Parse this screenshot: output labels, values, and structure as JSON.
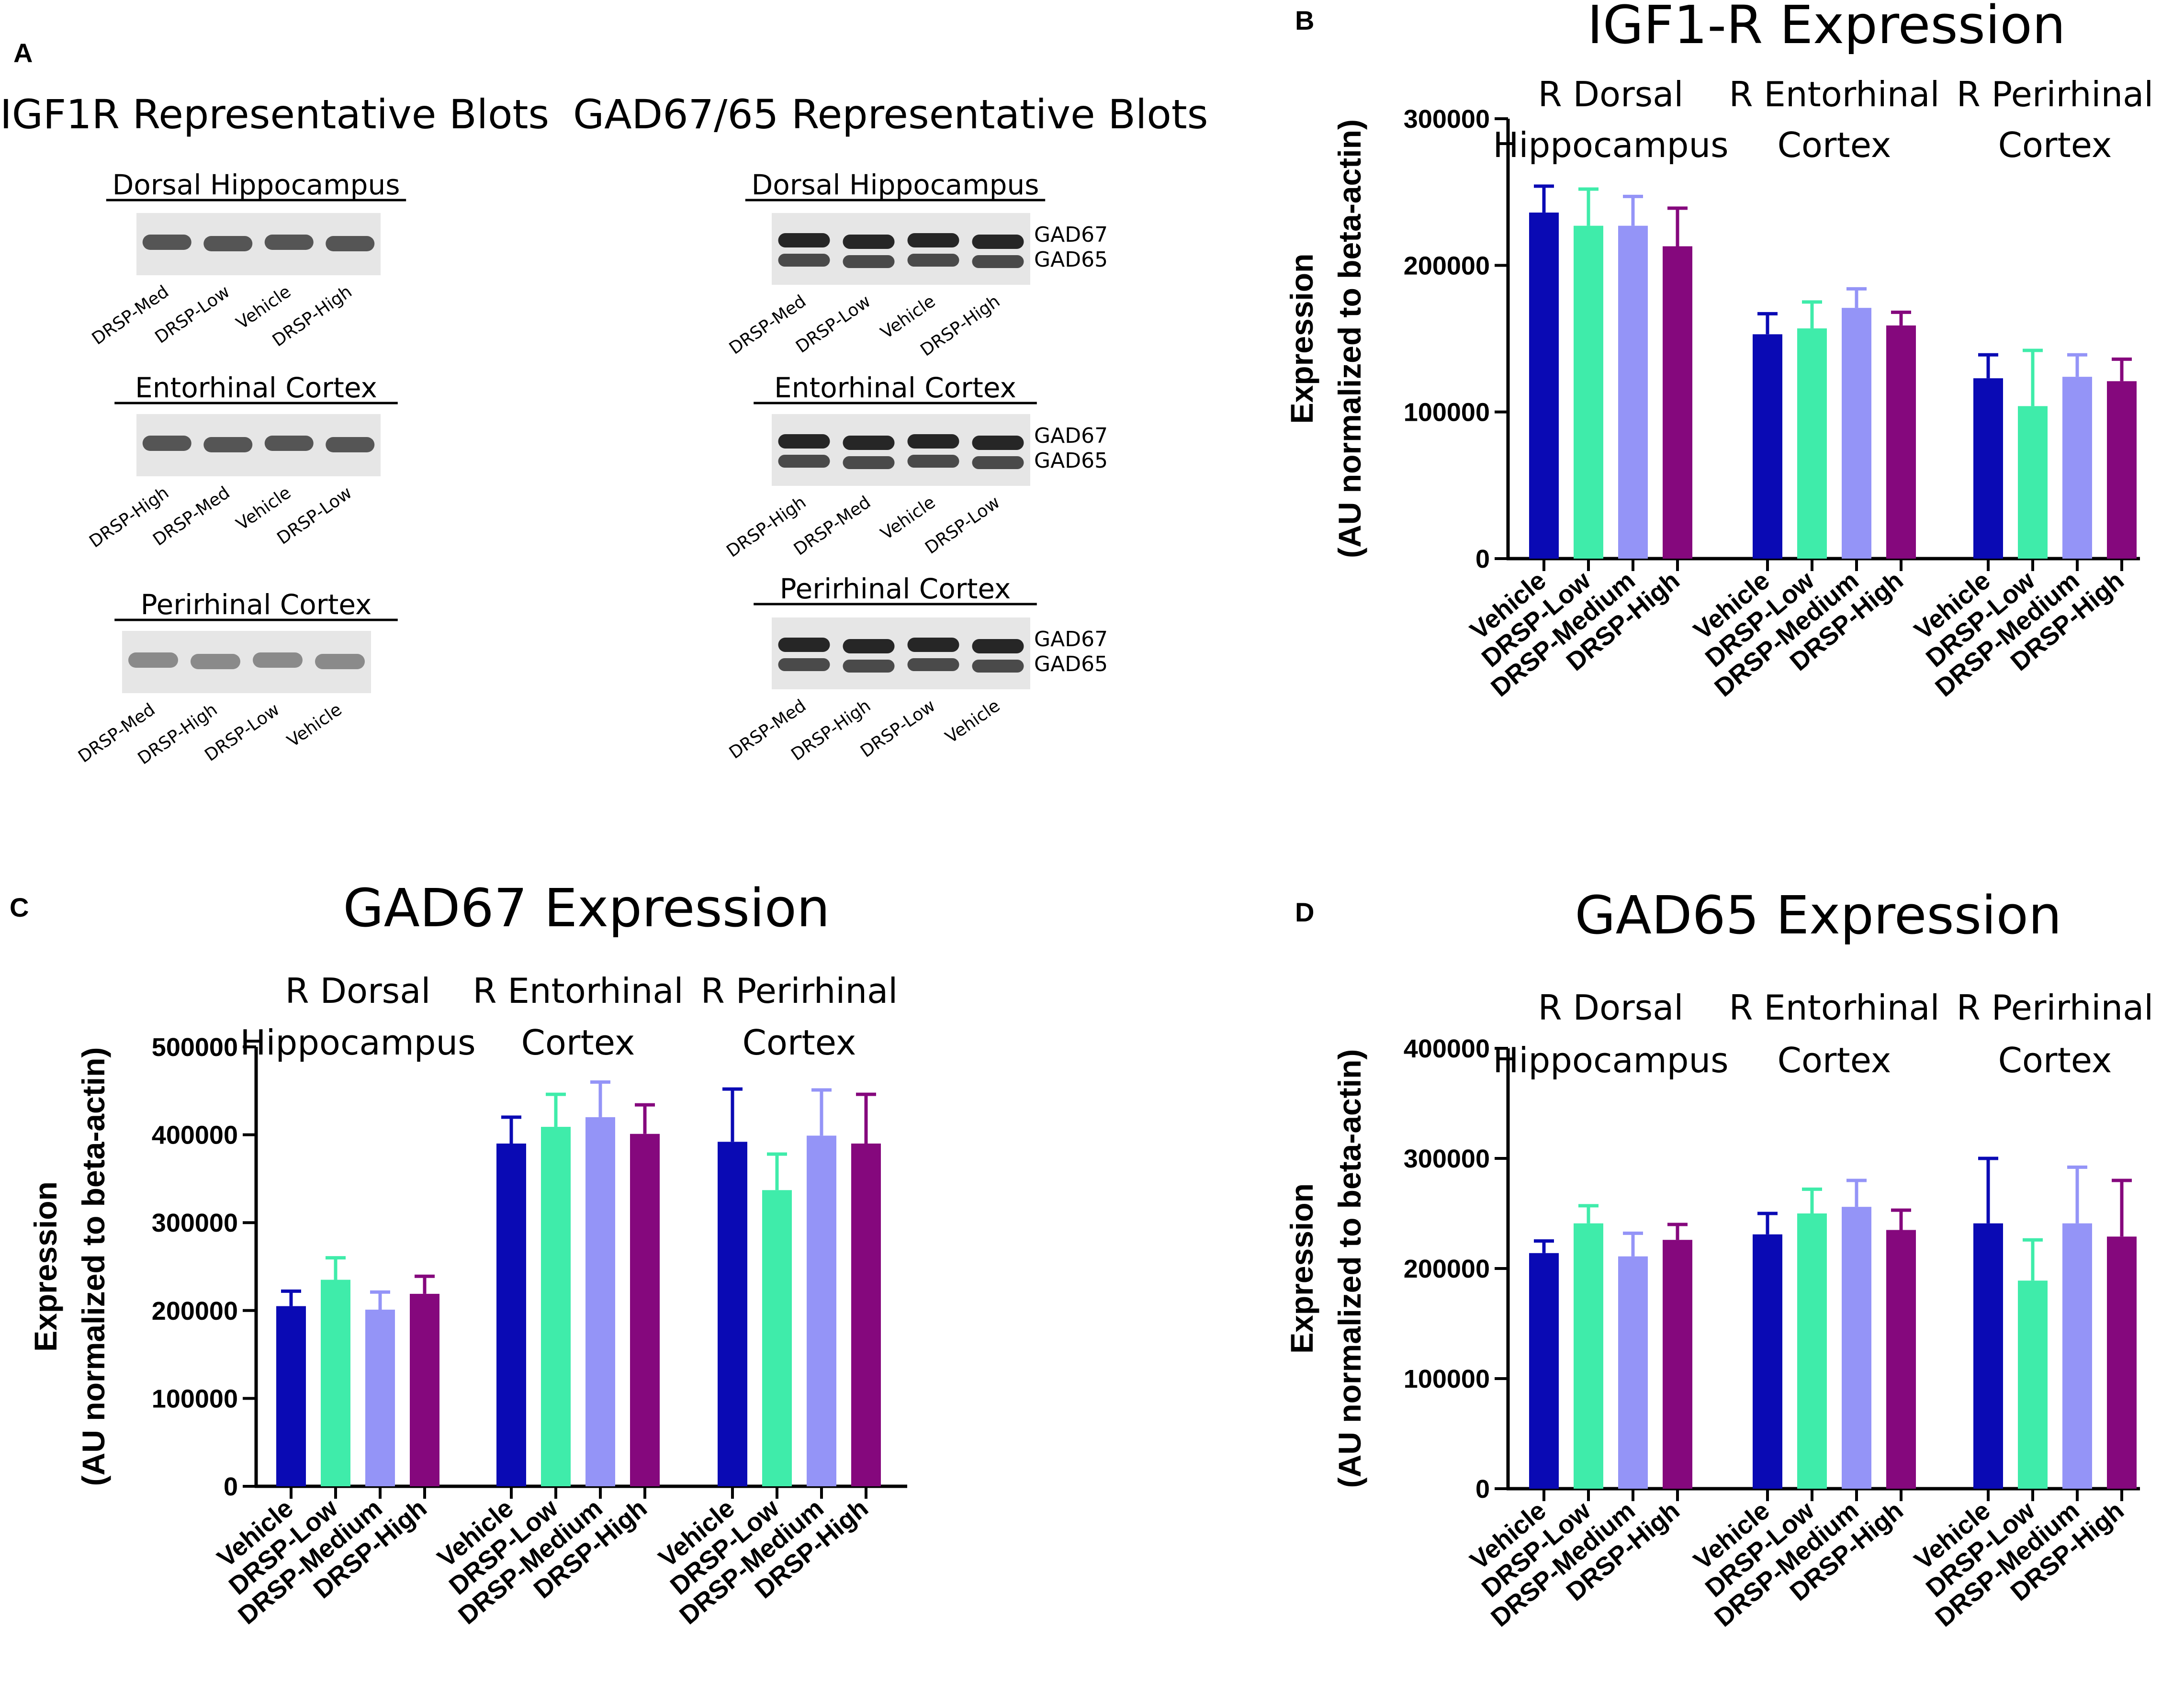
{
  "panel_a": {
    "letter": "A",
    "igf1r_title": "IGF1R Representative Blots",
    "gad_title": "GAD67/65 Representative Blots",
    "band_labels": [
      "GAD67",
      "GAD65"
    ],
    "igf1r_blots": [
      {
        "region": "Dorsal Hippocampus",
        "lanes": [
          "DRSP-Med",
          "DRSP-Low",
          "Vehicle",
          "DRSP-High"
        ]
      },
      {
        "region": "Entorhinal Cortex",
        "lanes": [
          "DRSP-High",
          "DRSP-Med",
          "Vehicle",
          "DRSP-Low"
        ]
      },
      {
        "region": "Perirhinal Cortex",
        "lanes": [
          "DRSP-Med",
          "DRSP-High",
          "DRSP-Low",
          "Vehicle"
        ]
      }
    ],
    "gad_blots": [
      {
        "region": "Dorsal Hippocampus",
        "lanes": [
          "DRSP-Med",
          "DRSP-Low",
          "Vehicle",
          "DRSP-High"
        ]
      },
      {
        "region": "Entorhinal Cortex",
        "lanes": [
          "DRSP-High",
          "DRSP-Med",
          "Vehicle",
          "DRSP-Low"
        ]
      },
      {
        "region": "Perirhinal Cortex",
        "lanes": [
          "DRSP-Med",
          "DRSP-High",
          "DRSP-Low",
          "Vehicle"
        ]
      }
    ]
  },
  "colors": {
    "Vehicle": "#0a0ab4",
    "DRSP-Low": "#3fecaa",
    "DRSP-Medium": "#9494f7",
    "DRSP-High": "#85087d"
  },
  "chart_data": [
    {
      "panel": "B",
      "type": "bar",
      "title": "IGF1-R Expression",
      "ylabel_line1": "Expression",
      "ylabel_line2": "(AU normalized to beta-actin)",
      "ylim": [
        0,
        300000
      ],
      "yticks": [
        "0",
        "100000",
        "200000",
        "300000"
      ],
      "group_labels": [
        [
          "R Dorsal",
          "Hippocampus"
        ],
        [
          "R Entorhinal",
          "Cortex"
        ],
        [
          "R Perirhinal",
          "Cortex"
        ]
      ],
      "categories": [
        "Vehicle",
        "DRSP-Low",
        "DRSP-Medium",
        "DRSP-High"
      ],
      "series": [
        {
          "name": "R Dorsal Hippocampus",
          "values": [
            236000,
            227000,
            227000,
            213000
          ],
          "errors": [
            18000,
            25000,
            20000,
            26000
          ]
        },
        {
          "name": "R Entorhinal Cortex",
          "values": [
            153000,
            157000,
            171000,
            159000
          ],
          "errors": [
            14000,
            18000,
            13000,
            9000
          ]
        },
        {
          "name": "R Perirhinal Cortex",
          "values": [
            123000,
            104000,
            124000,
            121000
          ],
          "errors": [
            16000,
            38000,
            15000,
            15000
          ]
        }
      ]
    },
    {
      "panel": "C",
      "type": "bar",
      "title": "GAD67 Expression",
      "ylabel_line1": "Expression",
      "ylabel_line2": "(AU normalized to beta-actin)",
      "ylim": [
        0,
        500000
      ],
      "yticks": [
        "0",
        "100000",
        "200000",
        "300000",
        "400000",
        "500000"
      ],
      "group_labels": [
        [
          "R Dorsal",
          "Hippocampus"
        ],
        [
          "R Entorhinal",
          "Cortex"
        ],
        [
          "R Perirhinal",
          "Cortex"
        ]
      ],
      "categories": [
        "Vehicle",
        "DRSP-Low",
        "DRSP-Medium",
        "DRSP-High"
      ],
      "series": [
        {
          "name": "R Dorsal Hippocampus",
          "values": [
            205000,
            235000,
            201000,
            219000
          ],
          "errors": [
            17000,
            25000,
            20000,
            20000
          ]
        },
        {
          "name": "R Entorhinal Cortex",
          "values": [
            390000,
            409000,
            420000,
            401000
          ],
          "errors": [
            30000,
            37000,
            40000,
            33000
          ]
        },
        {
          "name": "R Perirhinal Cortex",
          "values": [
            392000,
            337000,
            399000,
            390000
          ],
          "errors": [
            60000,
            41000,
            52000,
            56000
          ]
        }
      ]
    },
    {
      "panel": "D",
      "type": "bar",
      "title": "GAD65 Expression",
      "ylabel_line1": "Expression",
      "ylabel_line2": "(AU normalized to beta-actin)",
      "ylim": [
        0,
        400000
      ],
      "yticks": [
        "0",
        "100000",
        "200000",
        "300000",
        "400000"
      ],
      "group_labels": [
        [
          "R Dorsal",
          "Hippocampus"
        ],
        [
          "R Entorhinal",
          "Cortex"
        ],
        [
          "R Perirhinal",
          "Cortex"
        ]
      ],
      "categories": [
        "Vehicle",
        "DRSP-Low",
        "DRSP-Medium",
        "DRSP-High"
      ],
      "series": [
        {
          "name": "R Dorsal Hippocampus",
          "values": [
            214000,
            241000,
            211000,
            226000
          ],
          "errors": [
            11000,
            16000,
            21000,
            14000
          ]
        },
        {
          "name": "R Entorhinal Cortex",
          "values": [
            231000,
            250000,
            256000,
            235000
          ],
          "errors": [
            19000,
            22000,
            24000,
            18000
          ]
        },
        {
          "name": "R Perirhinal Cortex",
          "values": [
            241000,
            189000,
            241000,
            229000
          ],
          "errors": [
            59000,
            37000,
            51000,
            51000
          ]
        }
      ]
    }
  ]
}
